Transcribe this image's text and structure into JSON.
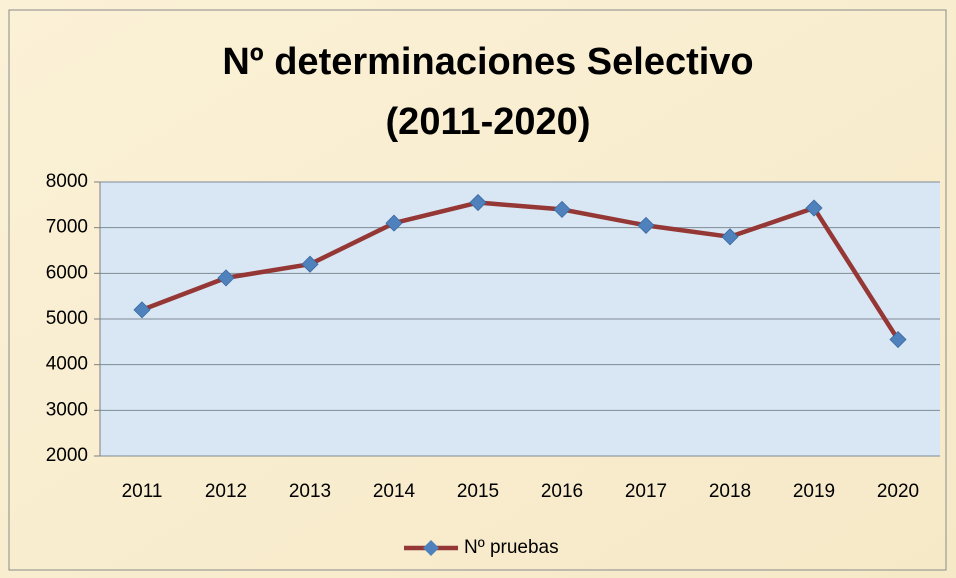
{
  "chart_data": {
    "type": "line",
    "title": [
      "Nº determinaciones Selectivo",
      "(2011-2020)"
    ],
    "categories": [
      "2011",
      "2012",
      "2013",
      "2014",
      "2015",
      "2016",
      "2017",
      "2018",
      "2019",
      "2020"
    ],
    "series": [
      {
        "name": "Nº pruebas",
        "color": "#953735",
        "marker_color": "#4f81bd",
        "values": [
          5200,
          5900,
          6200,
          7100,
          7550,
          7400,
          7050,
          6800,
          7430,
          4550
        ]
      }
    ],
    "ylim": [
      2000,
      8000
    ],
    "yticks": [
      2000,
      3000,
      4000,
      5000,
      6000,
      7000,
      8000
    ],
    "grid": true,
    "legend": "bottom"
  }
}
